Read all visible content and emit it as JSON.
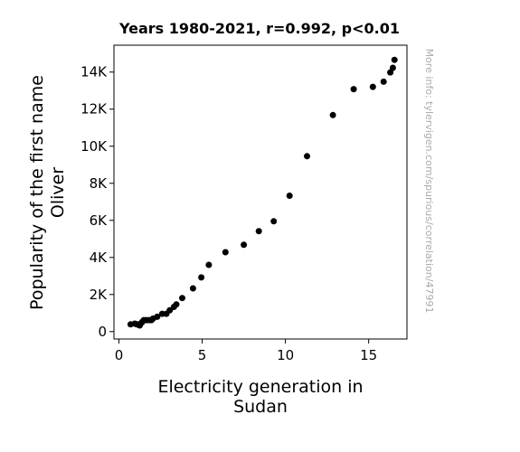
{
  "chart_data": {
    "type": "scatter",
    "title": "Years 1980-2021, r=0.992, p<0.01",
    "xlabel_lines": [
      "Electricity generation in",
      "Sudan"
    ],
    "ylabel_lines": [
      "Popularity of the first name",
      "Oliver"
    ],
    "xlim": [
      -0.3,
      17.3
    ],
    "ylim": [
      -400,
      15450
    ],
    "xticks": [
      0,
      5,
      10,
      15
    ],
    "xtick_labels": [
      "0",
      "5",
      "10",
      "15"
    ],
    "yticks": [
      0,
      2000,
      4000,
      6000,
      8000,
      10000,
      12000,
      14000
    ],
    "ytick_labels": [
      "0",
      "2K",
      "4K",
      "6K",
      "8K",
      "10K",
      "12K",
      "14K"
    ],
    "grid": false,
    "marker_color": "#000000",
    "points": [
      {
        "x": 0.7,
        "y": 390
      },
      {
        "x": 0.95,
        "y": 430
      },
      {
        "x": 1.05,
        "y": 400
      },
      {
        "x": 1.15,
        "y": 370
      },
      {
        "x": 1.25,
        "y": 330
      },
      {
        "x": 1.3,
        "y": 430
      },
      {
        "x": 1.4,
        "y": 520
      },
      {
        "x": 1.5,
        "y": 620
      },
      {
        "x": 1.65,
        "y": 620
      },
      {
        "x": 1.8,
        "y": 620
      },
      {
        "x": 1.95,
        "y": 620
      },
      {
        "x": 2.05,
        "y": 700
      },
      {
        "x": 2.3,
        "y": 800
      },
      {
        "x": 2.6,
        "y": 960
      },
      {
        "x": 2.85,
        "y": 960
      },
      {
        "x": 3.05,
        "y": 1150
      },
      {
        "x": 3.3,
        "y": 1330
      },
      {
        "x": 3.45,
        "y": 1470
      },
      {
        "x": 3.8,
        "y": 1810
      },
      {
        "x": 4.45,
        "y": 2330
      },
      {
        "x": 4.95,
        "y": 2920
      },
      {
        "x": 5.4,
        "y": 3600
      },
      {
        "x": 6.4,
        "y": 4280
      },
      {
        "x": 7.5,
        "y": 4680
      },
      {
        "x": 8.4,
        "y": 5420
      },
      {
        "x": 9.3,
        "y": 5950
      },
      {
        "x": 10.25,
        "y": 7330
      },
      {
        "x": 11.3,
        "y": 9460
      },
      {
        "x": 12.85,
        "y": 11680
      },
      {
        "x": 14.1,
        "y": 13080
      },
      {
        "x": 15.25,
        "y": 13200
      },
      {
        "x": 15.9,
        "y": 13480
      },
      {
        "x": 16.3,
        "y": 13980
      },
      {
        "x": 16.45,
        "y": 14230
      },
      {
        "x": 16.55,
        "y": 14660
      }
    ]
  },
  "watermark": "More info: tylervigen.com/spurious/correlation/47991"
}
